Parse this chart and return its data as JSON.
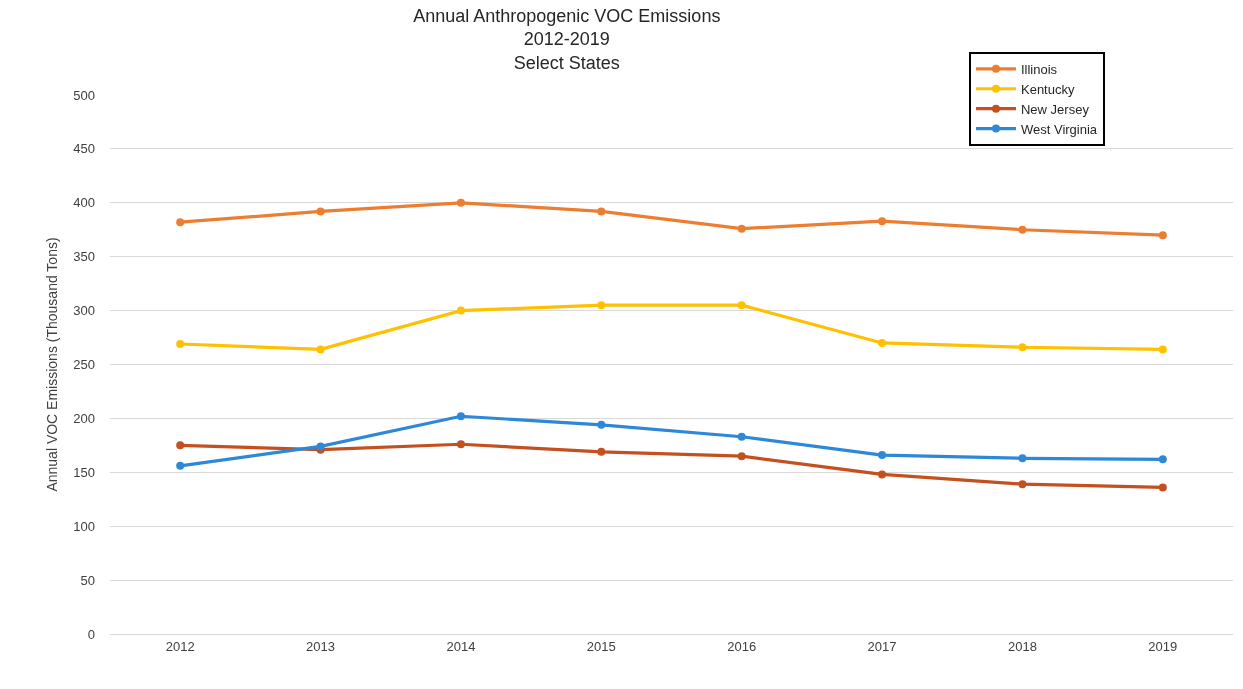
{
  "chart_data": {
    "type": "line",
    "title": "Annual Anthropogenic VOC Emissions\n2012-2019\nSelect States",
    "ylabel": "Annual VOC Emissions (Thousand Tons)",
    "categories": [
      "2012",
      "2013",
      "2014",
      "2015",
      "2016",
      "2017",
      "2018",
      "2019"
    ],
    "series": [
      {
        "name": "Illinois",
        "color": "#ed7d31",
        "values": [
          382,
          392,
          400,
          392,
          376,
          383,
          375,
          370
        ]
      },
      {
        "name": "Kentucky",
        "color": "#ffc000",
        "values": [
          269,
          264,
          300,
          305,
          305,
          270,
          266,
          264
        ]
      },
      {
        "name": "New Jersey",
        "color": "#c4501f",
        "values": [
          175,
          171,
          176,
          169,
          165,
          148,
          139,
          136
        ]
      },
      {
        "name": "West Virginia",
        "color": "#2e88d8",
        "values": [
          156,
          174,
          202,
          194,
          183,
          166,
          163,
          162
        ]
      }
    ],
    "ylim": [
      0,
      500
    ],
    "yticks": [
      0,
      50,
      100,
      150,
      200,
      250,
      300,
      350,
      400,
      450,
      500
    ],
    "grid": "y",
    "legend": "top right",
    "marker": "circle",
    "line_style": "solid"
  }
}
